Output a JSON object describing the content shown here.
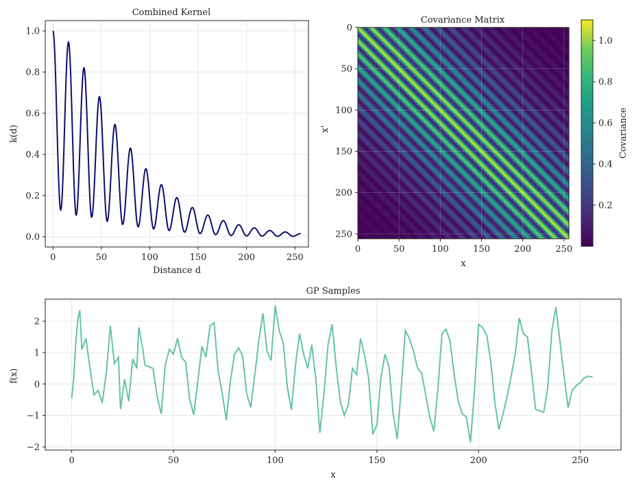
{
  "chart_data": [
    {
      "type": "line",
      "title": "Combined Kernel",
      "xlabel": "Distance d",
      "ylabel": "k(d)",
      "xlim": [
        -8,
        264
      ],
      "ylim": [
        -0.05,
        1.05
      ],
      "xticks": [
        "0",
        "50",
        "100",
        "150",
        "200",
        "250"
      ],
      "yticks": [
        "0.0",
        "0.2",
        "0.4",
        "0.6",
        "0.8",
        "1.0"
      ],
      "grid": true,
      "line_color": "#0d0d6b",
      "period": 16,
      "x": [
        0,
        8,
        16,
        24,
        32,
        40,
        48,
        56,
        64,
        72,
        80,
        88,
        96,
        104,
        112,
        120,
        128,
        136,
        144,
        152,
        160,
        168,
        176,
        184,
        192,
        200,
        208,
        216,
        224,
        232,
        240,
        248,
        256
      ],
      "y": [
        1.0,
        0.13,
        0.945,
        0.105,
        0.82,
        0.095,
        0.68,
        0.075,
        0.545,
        0.06,
        0.43,
        0.048,
        0.33,
        0.038,
        0.253,
        0.03,
        0.19,
        0.022,
        0.142,
        0.015,
        0.105,
        0.01,
        0.078,
        0.006,
        0.058,
        0.004,
        0.043,
        0.003,
        0.03,
        0.002,
        0.023,
        0.002,
        0.015
      ]
    },
    {
      "type": "heatmap",
      "title": "Covariance Matrix",
      "xlabel": "x",
      "ylabel": "x'",
      "xticks": [
        "0",
        "50",
        "100",
        "150",
        "200",
        "250"
      ],
      "yticks": [
        "0",
        "50",
        "100",
        "150",
        "200",
        "250"
      ],
      "extent": [
        0,
        256
      ],
      "colormap": "viridis",
      "colorbar_label": "Covariance",
      "colorbar_ticks": [
        "0.2",
        "0.4",
        "0.6",
        "0.8",
        "1.0"
      ],
      "vmin": 0.0,
      "vmax": 1.1,
      "period": 16,
      "matrix_definition": "k(|x - x'|) from Combined Kernel"
    },
    {
      "type": "line",
      "title": "GP Samples",
      "xlabel": "x",
      "ylabel": "f(x)",
      "xlim": [
        -13,
        270
      ],
      "ylim": [
        -2.1,
        2.7
      ],
      "xticks": [
        "0",
        "50",
        "100",
        "150",
        "200",
        "250"
      ],
      "yticks": [
        "−2",
        "−1",
        "0",
        "1",
        "2"
      ],
      "grid": true,
      "line_color": "#66c2a5",
      "x": [
        0,
        1,
        2,
        3,
        4,
        5,
        7,
        9,
        11,
        13,
        15,
        17,
        19,
        21,
        23,
        24,
        26,
        28,
        30,
        32,
        33,
        35,
        36,
        38,
        40,
        42,
        44,
        46,
        48,
        50,
        52,
        54,
        56,
        58,
        60,
        62,
        64,
        66,
        68,
        70,
        72,
        74,
        76,
        78,
        80,
        82,
        84,
        86,
        88,
        90,
        92,
        94,
        96,
        98,
        100,
        102,
        104,
        106,
        108,
        110,
        112,
        114,
        116,
        118,
        120,
        122,
        124,
        126,
        128,
        130,
        132,
        134,
        136,
        138,
        140,
        142,
        144,
        146,
        148,
        150,
        152,
        154,
        156,
        158,
        160,
        162,
        164,
        166,
        168,
        170,
        172,
        174,
        176,
        178,
        180,
        182,
        184,
        186,
        188,
        190,
        192,
        194,
        196,
        198,
        200,
        202,
        204,
        206,
        208,
        210,
        212,
        214,
        216,
        218,
        220,
        222,
        224,
        226,
        228,
        230,
        232,
        234,
        236,
        238,
        240,
        242,
        244,
        246,
        248,
        250,
        252,
        254,
        256
      ],
      "y": [
        -0.45,
        0.2,
        1.3,
        2.05,
        2.35,
        1.1,
        1.45,
        0.5,
        -0.35,
        -0.2,
        -0.6,
        0.35,
        1.85,
        0.65,
        0.85,
        -0.8,
        0.15,
        -0.55,
        0.8,
        0.5,
        1.8,
        1.1,
        0.6,
        0.55,
        0.5,
        -0.4,
        -0.95,
        0.6,
        1.1,
        0.95,
        1.45,
        0.85,
        0.7,
        -0.5,
        -0.98,
        0.1,
        1.2,
        0.85,
        1.85,
        1.95,
        0.4,
        -0.3,
        -1.15,
        0.1,
        0.95,
        1.15,
        0.9,
        -0.3,
        -0.75,
        0.3,
        1.4,
        2.25,
        1.05,
        0.75,
        2.5,
        1.7,
        1.3,
        -0.1,
        -0.82,
        0.6,
        1.6,
        0.95,
        0.5,
        1.25,
        0.15,
        -1.55,
        -0.3,
        1.25,
        1.9,
        0.55,
        -0.55,
        -1.0,
        -0.65,
        0.5,
        0.3,
        1.45,
        0.9,
        0.15,
        -1.6,
        -1.3,
        0.2,
        0.95,
        0.55,
        -0.95,
        -1.75,
        -0.1,
        1.7,
        1.45,
        1.05,
        0.5,
        0.35,
        -0.35,
        -1.05,
        -1.5,
        -0.15,
        1.6,
        1.75,
        1.35,
        0.3,
        -0.55,
        -0.95,
        -1.05,
        -1.85,
        -0.2,
        1.9,
        1.8,
        1.55,
        0.7,
        -0.6,
        -1.45,
        -0.95,
        -0.4,
        0.25,
        0.95,
        2.1,
        1.6,
        1.5,
        0.4,
        -0.8,
        -0.85,
        -0.9,
        -0.1,
        1.7,
        2.45,
        1.35,
        0.25,
        -0.75,
        -0.2,
        -0.05,
        0.05,
        0.2,
        0.25,
        0.22
      ]
    }
  ]
}
